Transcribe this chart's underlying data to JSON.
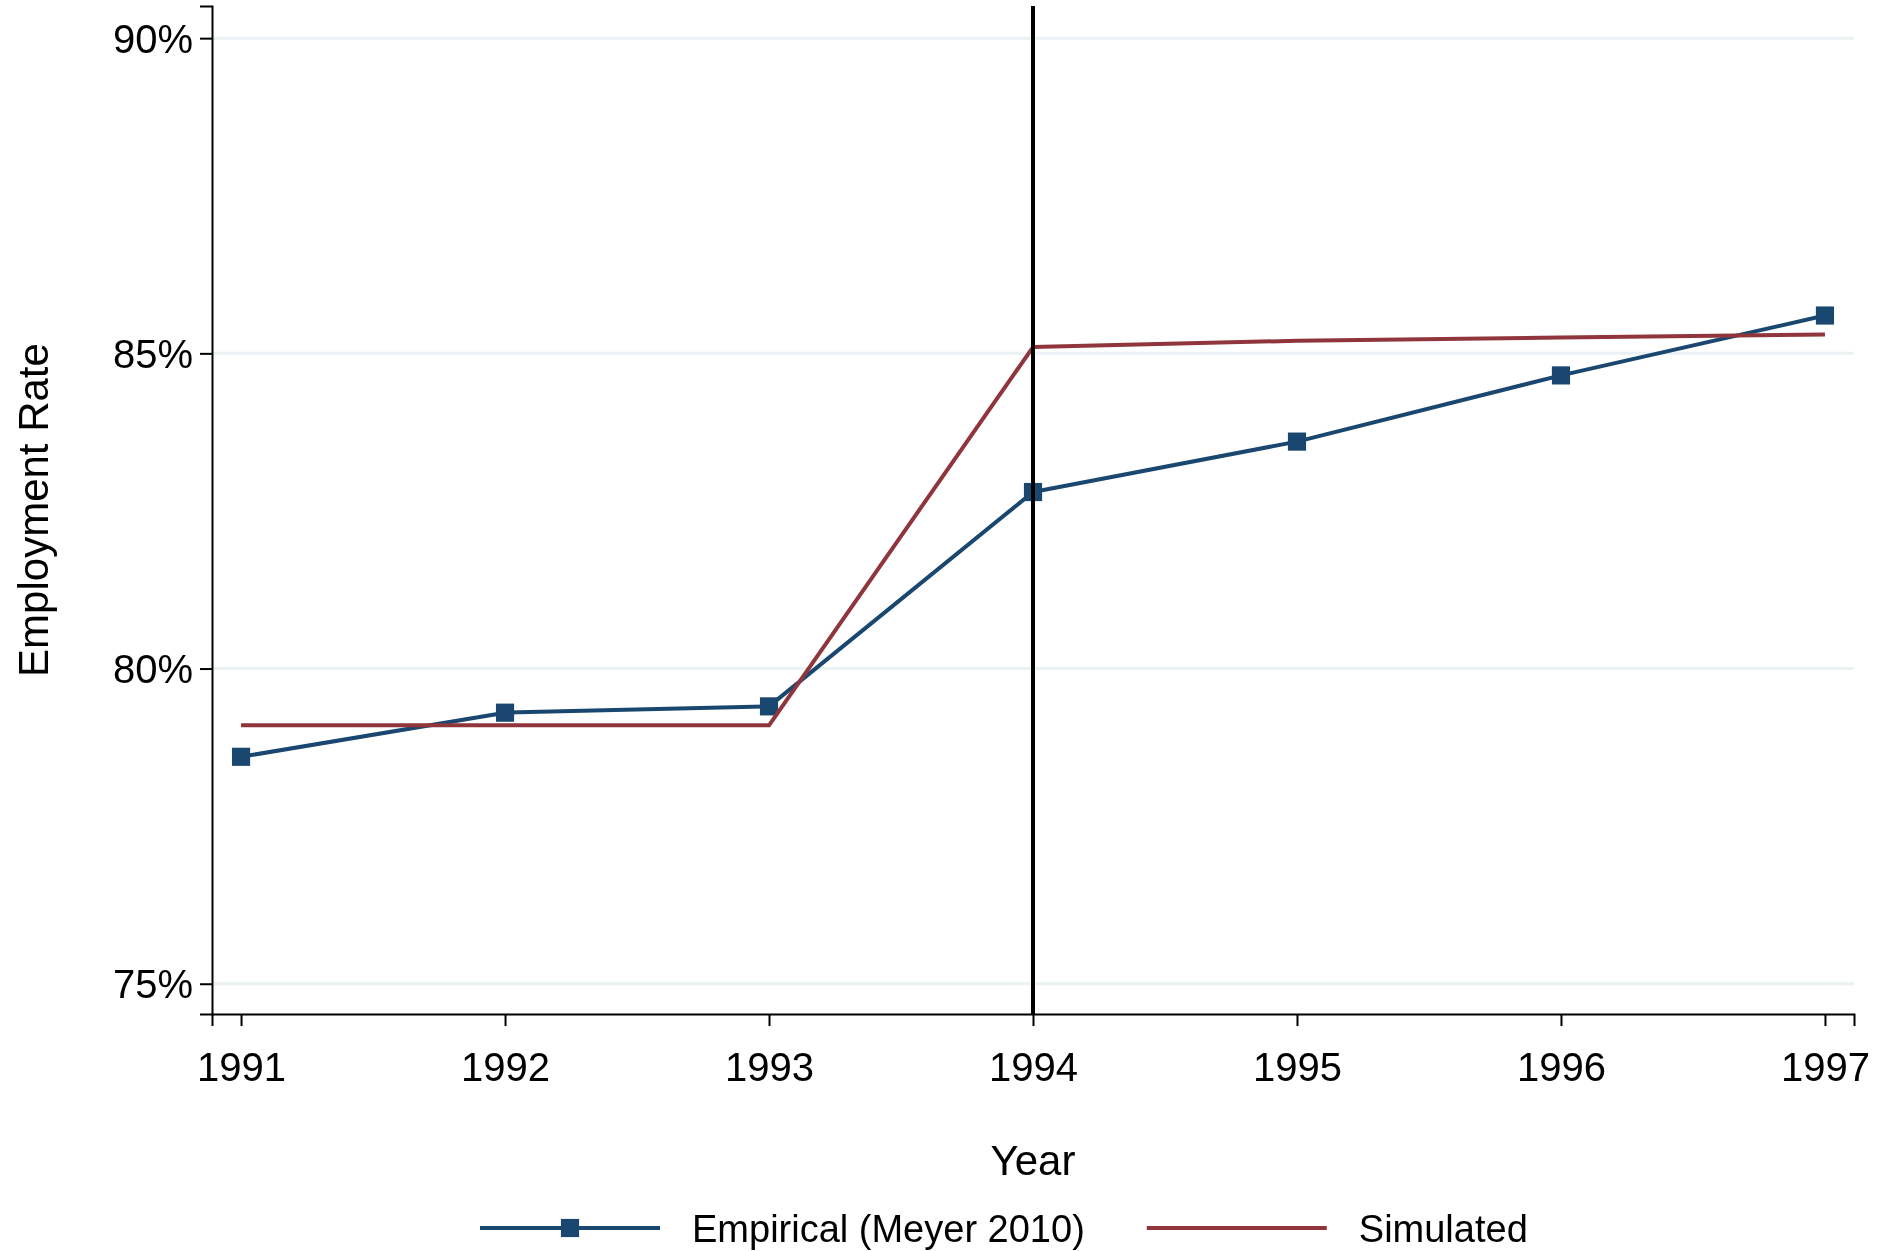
{
  "chart_data": {
    "type": "line",
    "xlabel": "Year",
    "ylabel": "Employment Rate",
    "x": [
      1991,
      1992,
      1993,
      1994,
      1995,
      1996,
      1997
    ],
    "series": [
      {
        "name": "Empirical (Meyer 2010)",
        "color": "#1a476f",
        "marker": "square",
        "values": [
          78.6,
          79.3,
          79.4,
          82.8,
          83.6,
          84.65,
          85.6
        ]
      },
      {
        "name": "Simulated",
        "color": "#90353b",
        "marker": "none",
        "values": [
          79.1,
          79.1,
          79.1,
          85.1,
          85.2,
          85.25,
          85.3
        ]
      }
    ],
    "xlim": [
      1990.89,
      1997.11
    ],
    "xticks": [
      1991,
      1992,
      1993,
      1994,
      1995,
      1996,
      1997
    ],
    "ylim": [
      74.52,
      90.51
    ],
    "yticks": [
      {
        "value": 75,
        "label": "75%"
      },
      {
        "value": 80,
        "label": "80%"
      },
      {
        "value": 85,
        "label": "85%"
      },
      {
        "value": 90,
        "label": "90%"
      }
    ],
    "grid": "y",
    "legend": "bottom",
    "line_style": "solid",
    "ref_lines": [
      {
        "axis": "x",
        "value": 1994,
        "color": "#000000"
      }
    ]
  }
}
